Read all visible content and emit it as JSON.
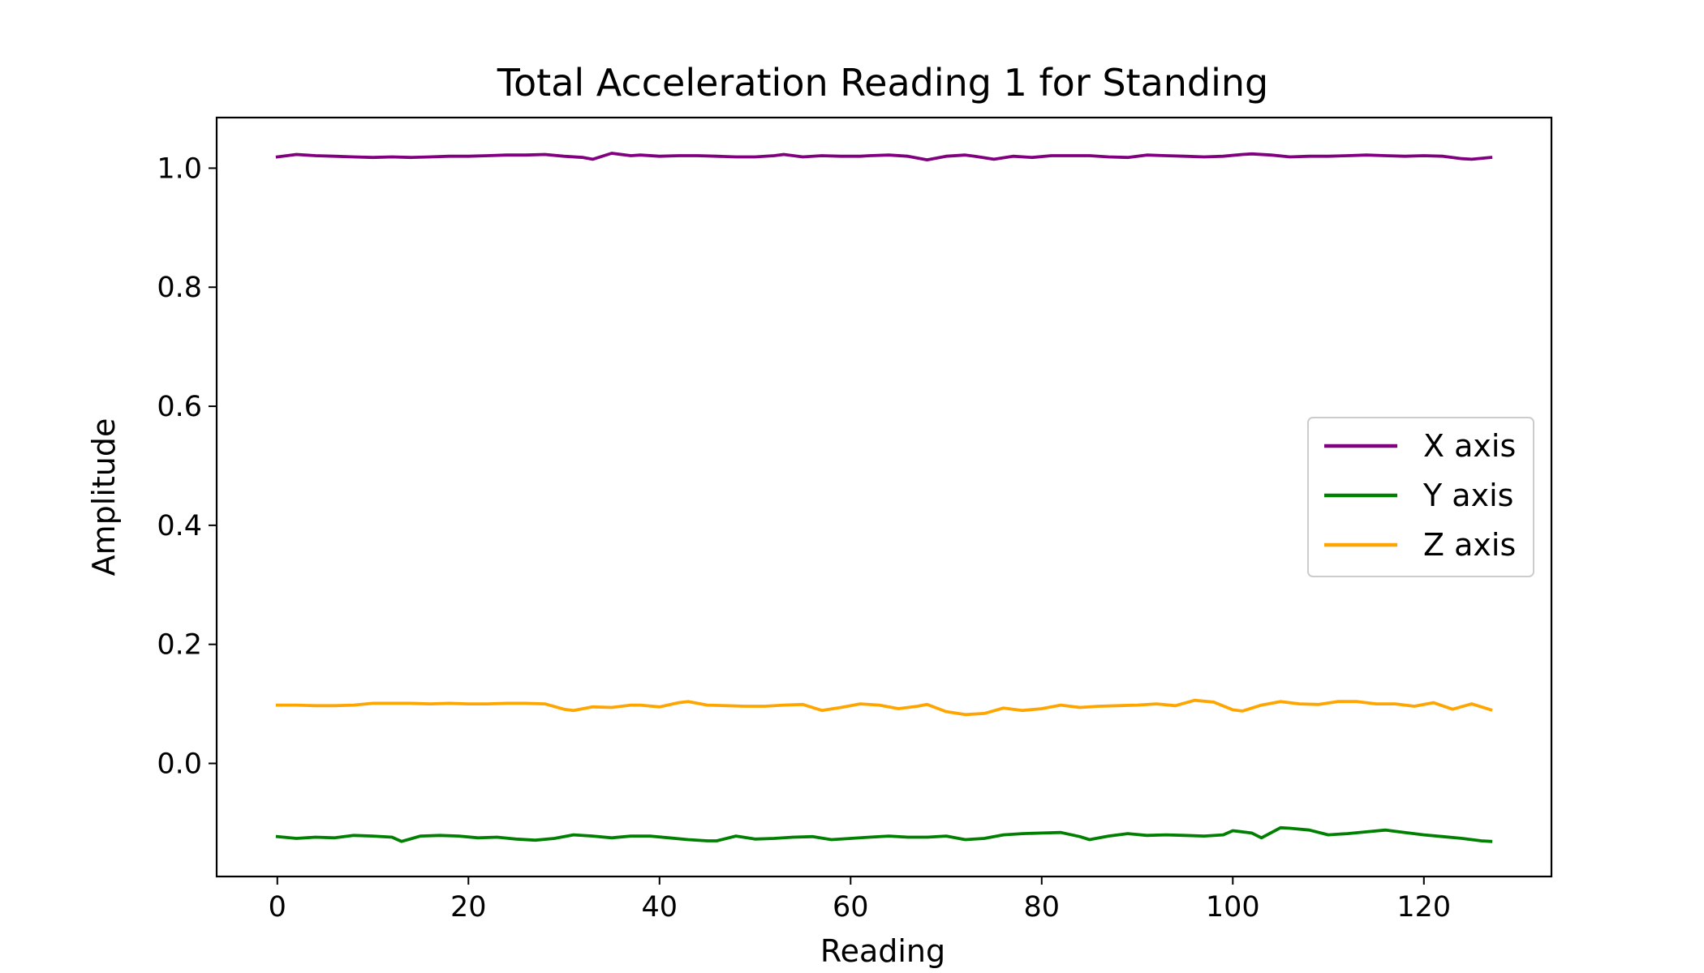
{
  "chart_data": {
    "type": "line",
    "title": "Total Acceleration Reading 1 for Standing",
    "xlabel": "Reading",
    "ylabel": "Amplitude",
    "xlim": [
      -6.35,
      133.35
    ],
    "ylim": [
      -0.19,
      1.085
    ],
    "xticks": [
      0,
      20,
      40,
      60,
      80,
      100,
      120
    ],
    "xtick_labels": [
      "0",
      "20",
      "40",
      "60",
      "80",
      "100",
      "120"
    ],
    "yticks": [
      0.0,
      0.2,
      0.4,
      0.6,
      0.8,
      1.0
    ],
    "ytick_labels": [
      "0.0",
      "0.2",
      "0.4",
      "0.6",
      "0.8",
      "1.0"
    ],
    "grid": false,
    "legend_position": "center-right",
    "series": [
      {
        "name": "X axis",
        "color": "#800080",
        "x": [
          0,
          2,
          4,
          6,
          8,
          10,
          12,
          14,
          16,
          18,
          20,
          22,
          24,
          26,
          28,
          30,
          32,
          33,
          35,
          37,
          38,
          40,
          42,
          44,
          46,
          48,
          50,
          52,
          53,
          55,
          57,
          59,
          61,
          62,
          64,
          66,
          68,
          70,
          72,
          73,
          75,
          77,
          79,
          81,
          83,
          85,
          87,
          89,
          91,
          93,
          95,
          97,
          99,
          101,
          102,
          104,
          106,
          108,
          110,
          112,
          114,
          116,
          118,
          120,
          122,
          124,
          125,
          127
        ],
        "y": [
          1.019,
          1.023,
          1.021,
          1.02,
          1.019,
          1.018,
          1.019,
          1.018,
          1.019,
          1.02,
          1.02,
          1.021,
          1.022,
          1.022,
          1.023,
          1.02,
          1.018,
          1.015,
          1.025,
          1.021,
          1.022,
          1.02,
          1.021,
          1.021,
          1.02,
          1.019,
          1.019,
          1.021,
          1.023,
          1.019,
          1.021,
          1.02,
          1.02,
          1.021,
          1.022,
          1.02,
          1.014,
          1.02,
          1.022,
          1.02,
          1.015,
          1.02,
          1.018,
          1.021,
          1.021,
          1.021,
          1.019,
          1.018,
          1.022,
          1.021,
          1.02,
          1.019,
          1.02,
          1.023,
          1.024,
          1.022,
          1.019,
          1.02,
          1.02,
          1.021,
          1.022,
          1.021,
          1.02,
          1.021,
          1.02,
          1.016,
          1.015,
          1.018
        ]
      },
      {
        "name": "Y axis",
        "color": "#008000",
        "x": [
          0,
          2,
          4,
          6,
          8,
          10,
          12,
          13,
          15,
          17,
          19,
          21,
          23,
          25,
          27,
          29,
          31,
          33,
          35,
          37,
          39,
          41,
          43,
          45,
          46,
          48,
          50,
          52,
          54,
          56,
          58,
          60,
          62,
          64,
          66,
          68,
          70,
          72,
          74,
          76,
          78,
          80,
          82,
          84,
          85,
          87,
          89,
          91,
          93,
          95,
          97,
          99,
          100,
          102,
          103,
          105,
          106,
          108,
          110,
          112,
          114,
          116,
          118,
          120,
          122,
          124,
          126,
          127
        ],
        "y": [
          -0.123,
          -0.126,
          -0.124,
          -0.125,
          -0.121,
          -0.122,
          -0.124,
          -0.131,
          -0.122,
          -0.121,
          -0.122,
          -0.125,
          -0.124,
          -0.127,
          -0.129,
          -0.126,
          -0.12,
          -0.122,
          -0.125,
          -0.122,
          -0.122,
          -0.125,
          -0.128,
          -0.13,
          -0.13,
          -0.122,
          -0.127,
          -0.126,
          -0.124,
          -0.123,
          -0.128,
          -0.126,
          -0.124,
          -0.122,
          -0.124,
          -0.124,
          -0.122,
          -0.128,
          -0.126,
          -0.12,
          -0.118,
          -0.117,
          -0.116,
          -0.123,
          -0.128,
          -0.122,
          -0.118,
          -0.121,
          -0.12,
          -0.121,
          -0.122,
          -0.12,
          -0.113,
          -0.117,
          -0.125,
          -0.108,
          -0.109,
          -0.112,
          -0.12,
          -0.118,
          -0.115,
          -0.112,
          -0.116,
          -0.12,
          -0.123,
          -0.126,
          -0.13,
          -0.131
        ]
      },
      {
        "name": "Z axis",
        "color": "#FFA500",
        "x": [
          0,
          2,
          4,
          6,
          8,
          10,
          12,
          14,
          16,
          18,
          20,
          22,
          24,
          26,
          28,
          30,
          31,
          33,
          35,
          37,
          38,
          40,
          42,
          43,
          45,
          47,
          49,
          51,
          53,
          55,
          57,
          59,
          61,
          63,
          65,
          67,
          68,
          70,
          72,
          74,
          76,
          78,
          80,
          82,
          84,
          86,
          88,
          90,
          92,
          94,
          96,
          98,
          100,
          101,
          103,
          105,
          107,
          109,
          111,
          113,
          115,
          117,
          119,
          121,
          123,
          125,
          127
        ],
        "y": [
          0.098,
          0.098,
          0.097,
          0.097,
          0.098,
          0.101,
          0.101,
          0.101,
          0.1,
          0.101,
          0.1,
          0.1,
          0.101,
          0.101,
          0.1,
          0.091,
          0.089,
          0.095,
          0.094,
          0.098,
          0.098,
          0.095,
          0.102,
          0.104,
          0.098,
          0.097,
          0.096,
          0.096,
          0.098,
          0.099,
          0.089,
          0.094,
          0.1,
          0.098,
          0.092,
          0.096,
          0.099,
          0.087,
          0.082,
          0.084,
          0.093,
          0.089,
          0.092,
          0.098,
          0.094,
          0.096,
          0.097,
          0.098,
          0.1,
          0.097,
          0.106,
          0.103,
          0.09,
          0.088,
          0.098,
          0.104,
          0.1,
          0.099,
          0.104,
          0.104,
          0.1,
          0.1,
          0.096,
          0.102,
          0.091,
          0.1,
          0.09
        ]
      }
    ]
  }
}
